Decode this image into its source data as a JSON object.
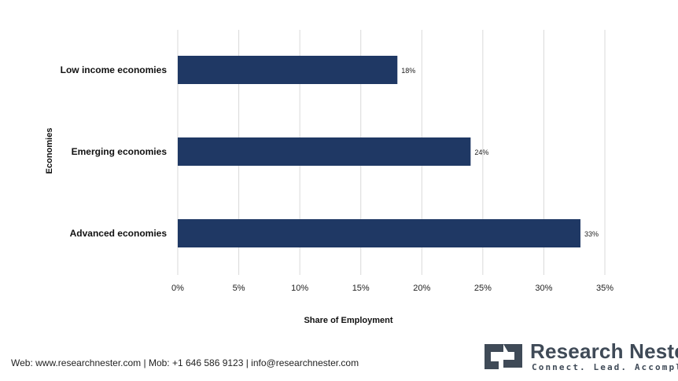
{
  "chart_data": {
    "type": "bar",
    "orientation": "horizontal",
    "categories": [
      "Low income economies",
      "Emerging economies",
      "Advanced economies"
    ],
    "values": [
      18,
      24,
      33
    ],
    "value_labels": [
      "18%",
      "24%",
      "33%"
    ],
    "xlabel": "Share of Employment",
    "ylabel": "Economies",
    "xlim": [
      0,
      35
    ],
    "xticks": [
      "0%",
      "5%",
      "10%",
      "15%",
      "20%",
      "25%",
      "30%",
      "35%"
    ],
    "grid": "vertical",
    "bar_color": "#1f3864"
  },
  "footer": {
    "contact": "Web: www.researchnester.com | Mob: +1 646 586 9123 | info@researchnester.com"
  },
  "logo": {
    "name": "Research Nester",
    "tagline": "Connect. Lead. Accomplish"
  }
}
